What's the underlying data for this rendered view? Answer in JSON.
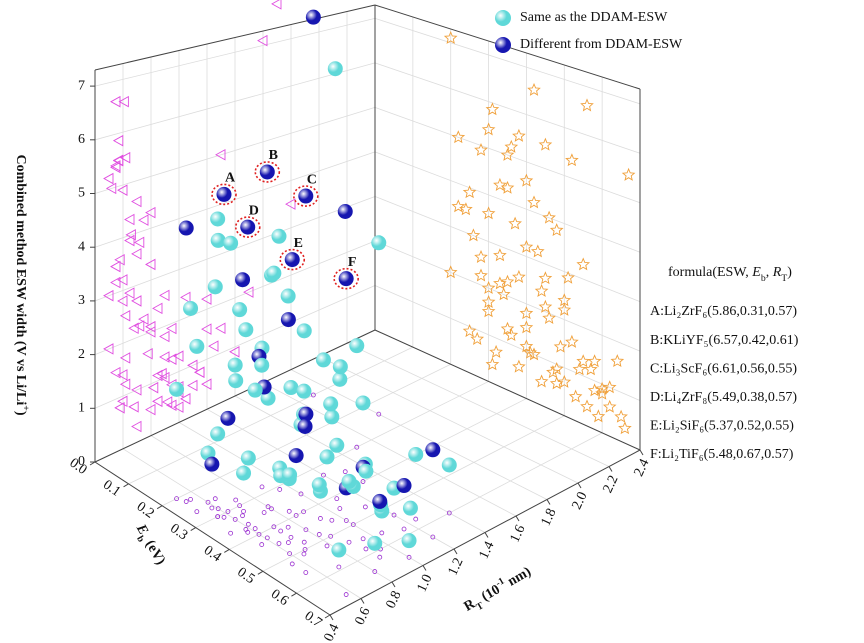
{
  "chart_data": {
    "type": "scatter3d",
    "xlabel": [
      {
        "text": "E",
        "italic": true
      },
      {
        "text": "b",
        "sub": true
      },
      {
        "text": " (eV)"
      }
    ],
    "ylabel": [
      {
        "text": "R"
      },
      {
        "text": "T",
        "sub": true
      },
      {
        "text": " (10"
      },
      {
        "text": "-1",
        "sup": true
      },
      {
        "text": " nm)"
      }
    ],
    "zlabel": [
      {
        "text": "Combined method ESW width (V vs Li/Li"
      },
      {
        "text": "+",
        "sup": true
      },
      {
        "text": ")"
      }
    ],
    "xlim": [
      0,
      0.7
    ],
    "xticks": [
      {
        "value": 0,
        "label": "0.0"
      },
      0.1,
      0.2,
      0.3,
      0.4,
      0.5,
      0.6,
      0.7
    ],
    "ylim": [
      0.4,
      2.4
    ],
    "yticks": [
      0.4,
      0.6,
      0.8,
      {
        "value": 1,
        "label": "1.0"
      },
      1.2,
      1.4,
      1.6,
      1.8,
      {
        "value": 2,
        "label": "2.0"
      },
      2.2,
      2.4
    ],
    "zlim": [
      0,
      7.3
    ],
    "zticks": [
      0,
      1,
      2,
      3,
      4,
      5,
      6,
      7
    ],
    "grid": true,
    "projection_colors": {
      "left_wall": "#e04ee0",
      "right_wall": "#f0a03a",
      "floor": "#9a2fd0"
    },
    "series": [
      {
        "name": "Same as the DDAM-ESW",
        "color": "#5fd8d8",
        "x": [
          0.3,
          0.28,
          0.36,
          0.45,
          0.2,
          0.4,
          0.35,
          0.42,
          0.25,
          0.3,
          0.48,
          0.55,
          0.22,
          0.26,
          0.33,
          0.38,
          0.45,
          0.5,
          0.28,
          0.34,
          0.4,
          0.46,
          0.52,
          0.58,
          0.3,
          0.36,
          0.42,
          0.48,
          0.54,
          0.6,
          0.25,
          0.32,
          0.38,
          0.44,
          0.5,
          0.56,
          0.62,
          0.35,
          0.41,
          0.47,
          0.53,
          0.59,
          0.65,
          0.28,
          0.33,
          0.4,
          0.3,
          0.6,
          0.2,
          0.66,
          0.43,
          0.37,
          0.51,
          0.57,
          0.24,
          0.44,
          0.49,
          0.31
        ],
        "y": [
          0.55,
          0.6,
          0.5,
          0.62,
          1.6,
          0.7,
          0.8,
          0.75,
          0.65,
          0.7,
          0.72,
          0.8,
          0.55,
          0.5,
          0.6,
          0.62,
          0.7,
          0.85,
          0.72,
          0.8,
          0.9,
          0.95,
          0.78,
          0.9,
          0.55,
          0.62,
          0.7,
          0.82,
          0.88,
          0.95,
          0.6,
          0.68,
          0.85,
          0.92,
          1.0,
          1.05,
          1.1,
          1.0,
          1.1,
          1.15,
          1.2,
          0.7,
          0.8,
          0.9,
          1.2,
          1.3,
          1.5,
          1.4,
          0.5,
          1.0,
          0.55,
          0.58,
          0.65,
          1.25,
          1.8,
          1.05,
          0.6,
          0.95
        ],
        "z": [
          5.4,
          4.9,
          5.2,
          5.5,
          7.1,
          4.6,
          4.3,
          4.2,
          3.9,
          3.6,
          3.8,
          3.3,
          3.5,
          3.0,
          2.8,
          2.5,
          2.7,
          2.4,
          2.2,
          2.0,
          1.8,
          1.9,
          1.6,
          1.4,
          1.5,
          1.2,
          1.0,
          0.9,
          1.1,
          0.8,
          0.9,
          0.7,
          0.6,
          0.5,
          0.7,
          0.4,
          0.6,
          1.3,
          1.0,
          0.8,
          0.5,
          0.3,
          0.5,
          2.6,
          2.2,
          1.5,
          2.0,
          0.9,
          2.0,
          0.3,
          3.2,
          3.6,
          2.9,
          1.2,
          3.5,
          2.4,
          1.4,
          0.4
        ]
      },
      {
        "name": "Different from DDAM-ESW",
        "color": "#1616b0",
        "x": [
          0.31,
          0.42,
          0.56,
          0.38,
          0.52,
          0.67,
          0.1,
          0.35,
          0.22,
          0.33,
          0.46,
          0.4,
          0.35,
          0.45,
          0.5,
          0.3,
          0.55,
          0.4,
          0.62,
          0.48,
          0.58,
          0.27,
          0.64
        ],
        "y": [
          0.57,
          0.61,
          0.55,
          0.57,
          0.55,
          0.57,
          1.7,
          1.3,
          0.52,
          0.65,
          0.66,
          0.6,
          0.75,
          0.8,
          0.68,
          0.62,
          0.95,
          0.85,
          0.9,
          1.0,
          1.15,
          0.58,
          1.2
        ],
        "z": [
          5.86,
          6.57,
          6.61,
          5.49,
          5.37,
          5.48,
          7.8,
          5.0,
          5.0,
          4.3,
          4.0,
          3.2,
          2.3,
          2.1,
          2.2,
          1.7,
          1.3,
          1.1,
          1.0,
          0.6,
          0.8,
          0.8,
          1.6
        ],
        "labels": [
          "A",
          "B",
          "C",
          "D",
          "E",
          "F",
          null,
          null,
          null,
          null,
          null,
          null,
          null,
          null,
          null,
          null,
          null,
          null,
          null,
          null,
          null,
          null,
          null
        ]
      }
    ],
    "formula_table": {
      "title": [
        {
          "text": "formula(ESW, "
        },
        {
          "text": "E",
          "italic": true
        },
        {
          "text": "b",
          "sub": true
        },
        {
          "text": ", "
        },
        {
          "text": "R",
          "italic": true
        },
        {
          "text": "T",
          "sub": true
        },
        {
          "text": ")"
        }
      ],
      "rows": [
        "A:Li₂ZrF₆(5.86,0.31,0.57)",
        "B:KLiYF₅(6.57,0.42,0.61)",
        "C:Li₃ScF₆(6.61,0.56,0.55)",
        "D:Li₄ZrF₈(5.49,0.38,0.57)",
        "E:Li₂SiF₆(5.37,0.52,0.55)",
        "F:Li₂TiF₆(5.48,0.67,0.57)"
      ]
    }
  }
}
